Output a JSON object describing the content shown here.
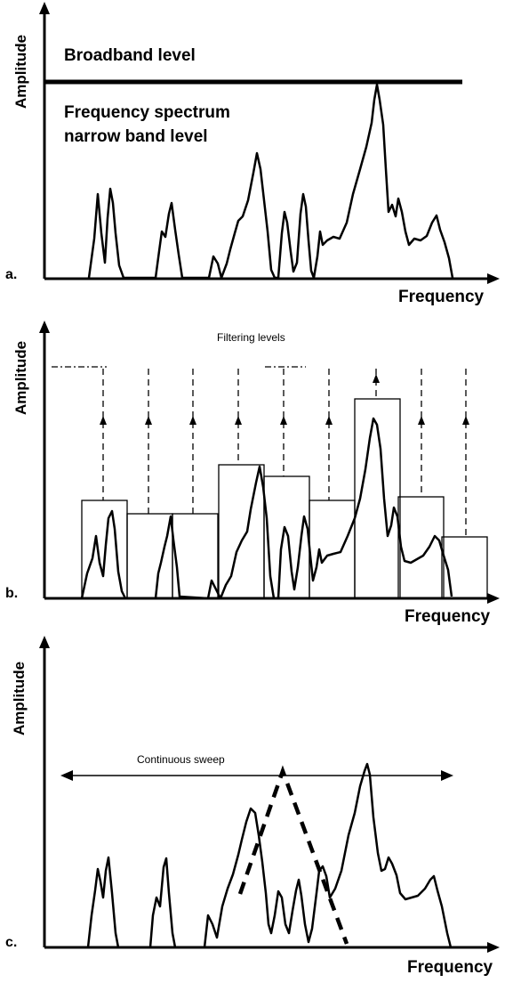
{
  "figure": {
    "panel_a": {
      "letter": "a.",
      "ylabel": "Amplitude",
      "xlabel": "Frequency",
      "broadband_label": "Broadband level",
      "spectrum_label_line1": "Frequency spectrum",
      "spectrum_label_line2": "narrow band level"
    },
    "panel_b": {
      "letter": "b.",
      "ylabel": "Amplitude",
      "xlabel": "Frequency",
      "filtering_label": "Filtering levels"
    },
    "panel_c": {
      "letter": "c.",
      "ylabel": "Amplitude",
      "xlabel": "Frequency",
      "sweep_label": "Continuous sweep"
    },
    "colors": {
      "ink": "#000000",
      "background": "#ffffff"
    }
  }
}
